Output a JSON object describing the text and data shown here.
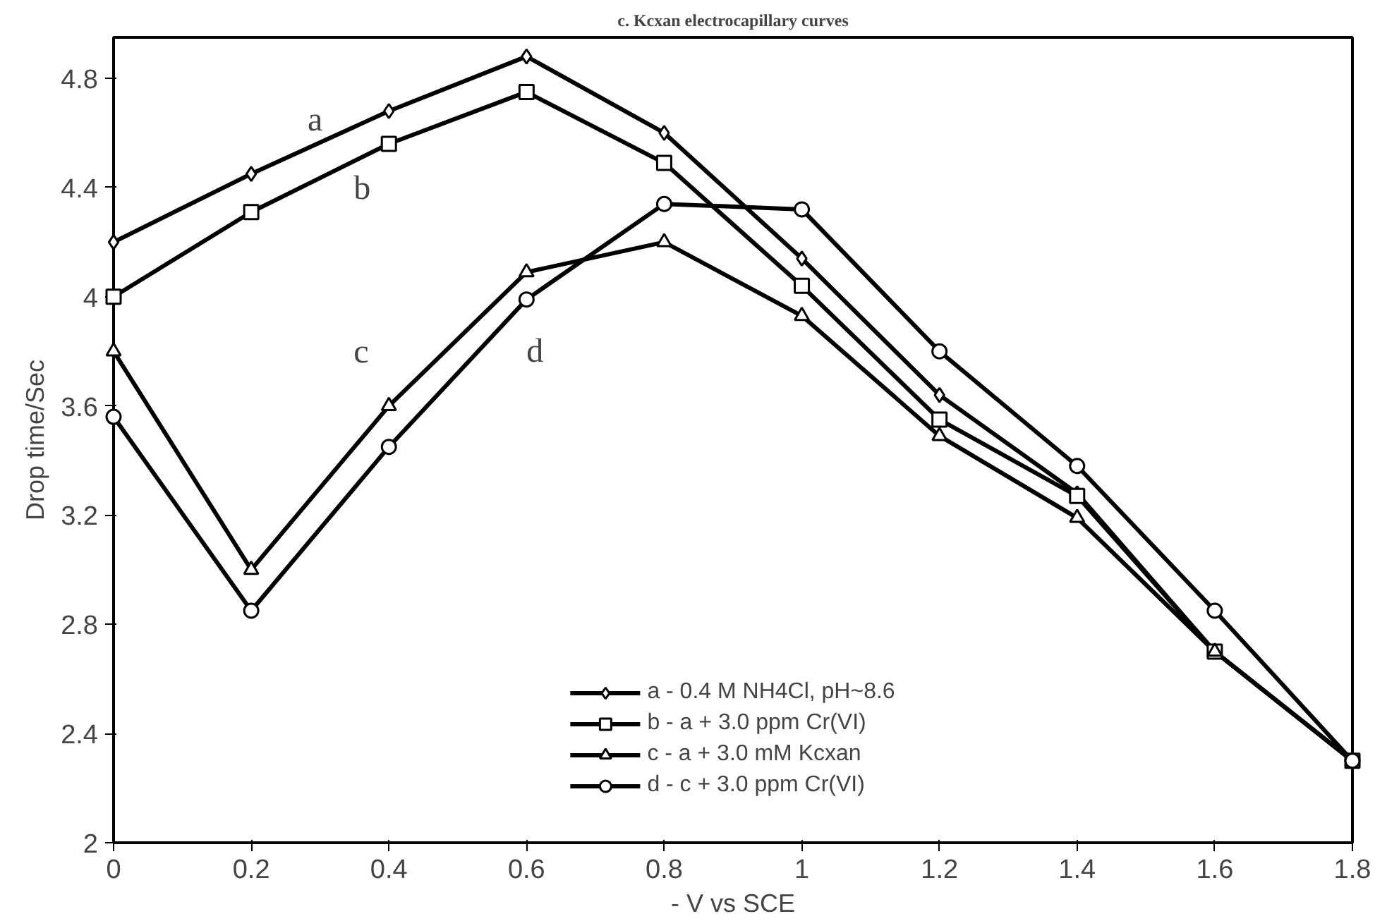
{
  "chart_data": {
    "type": "line",
    "title": "c. Kcxan electrocapillary curves",
    "xlabel": "- V vs SCE",
    "ylabel": "Drop time/Sec",
    "x": [
      0,
      0.2,
      0.4,
      0.6,
      0.8,
      1.0,
      1.2,
      1.4,
      1.6,
      1.8
    ],
    "series": [
      {
        "name": "a - 0.4 M NH4Cl, pH~8.6",
        "color": "#000000",
        "marker": "diamond",
        "values": [
          4.2,
          4.45,
          4.68,
          4.88,
          4.6,
          4.14,
          3.64,
          3.28,
          2.7,
          2.3
        ]
      },
      {
        "name": "b - a + 3.0 ppm Cr(VI)",
        "color": "#000000",
        "marker": "square",
        "values": [
          4.0,
          4.31,
          4.56,
          4.75,
          4.49,
          4.04,
          3.55,
          3.27,
          2.7,
          2.3
        ]
      },
      {
        "name": "c - a + 3.0 mM Kcxan",
        "color": "#000000",
        "marker": "triangle",
        "values": [
          3.8,
          3.0,
          3.6,
          4.09,
          4.2,
          3.93,
          3.49,
          3.19,
          2.7,
          2.3
        ]
      },
      {
        "name": "d - c + 3.0 ppm Cr(VI)",
        "color": "#000000",
        "marker": "circle",
        "values": [
          3.56,
          2.85,
          3.45,
          3.99,
          4.34,
          4.32,
          3.8,
          3.38,
          2.85,
          2.3
        ]
      }
    ],
    "annotations": [
      "a",
      "b",
      "c",
      "d"
    ],
    "xlim": [
      0,
      1.8
    ],
    "xticks": [
      0,
      0.2,
      0.4,
      0.6,
      0.8,
      1,
      1.2,
      1.4,
      1.6,
      1.8
    ],
    "ylim": [
      2,
      4.95
    ],
    "yticks": [
      2,
      2.4,
      2.8,
      3.2,
      3.6,
      4,
      4.4,
      4.8
    ],
    "grid": false,
    "legend": "bottom",
    "line_style": "solid"
  }
}
